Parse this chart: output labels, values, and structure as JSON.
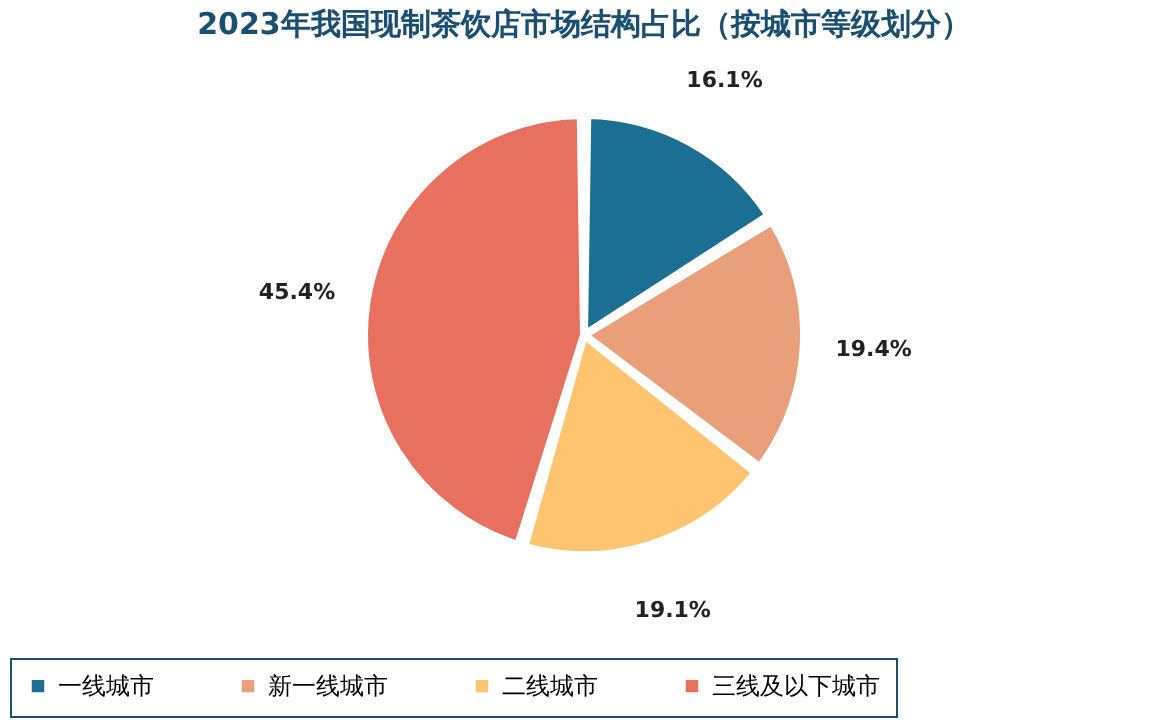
{
  "chart_data": {
    "type": "pie",
    "title": "2023年我国现制茶饮店市场结构占比（按城市等级划分）",
    "categories": [
      "一线城市",
      "新一线城市",
      "二线城市",
      "三线及以下城市"
    ],
    "values": [
      16.1,
      19.4,
      19.1,
      45.4
    ],
    "colors": [
      "#1b6f93",
      "#e89f7a",
      "#fec46f",
      "#e8705f"
    ],
    "value_labels": [
      "16.1%",
      "19.4%",
      "19.1%",
      "45.4%"
    ],
    "legend": "bottom"
  }
}
